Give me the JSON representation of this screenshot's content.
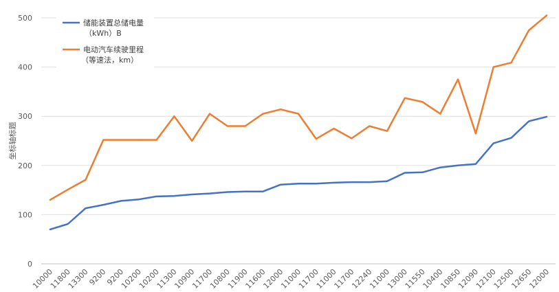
{
  "chart_data": {
    "type": "line",
    "ylabel": "坐标轴标题",
    "ylim": [
      0,
      500
    ],
    "yticks": [
      "0",
      "100",
      "200",
      "300",
      "400",
      "500"
    ],
    "grid": true,
    "legend_position": "top-left",
    "categories": [
      "10000",
      "11800",
      "13300",
      "9200",
      "9200",
      "10200",
      "10200",
      "11300",
      "10900",
      "11700",
      "10800",
      "11900",
      "11600",
      "12000",
      "11000",
      "11700",
      "11000",
      "11700",
      "12240",
      "11000",
      "13000",
      "11550",
      "10400",
      "10850",
      "12090",
      "12100",
      "12500",
      "12650",
      "12000"
    ],
    "series": [
      {
        "name": "储能装置总储电量",
        "name_line2": "（kWh）B",
        "color": "#4472C4",
        "values": [
          70,
          81,
          113,
          120,
          128,
          131,
          137,
          138,
          141,
          143,
          146,
          147,
          147,
          161,
          163,
          163,
          165,
          166,
          166,
          168,
          185,
          186,
          196,
          200,
          203,
          245,
          256,
          290,
          299
        ]
      },
      {
        "name": "电动汽车续驶里程",
        "name_line2": "（等速法，km）",
        "color": "#ED7D31",
        "values": [
          130,
          151,
          171,
          252,
          252,
          252,
          252,
          300,
          250,
          305,
          280,
          280,
          305,
          314,
          305,
          254,
          275,
          255,
          280,
          270,
          337,
          329,
          305,
          375,
          265,
          400,
          409,
          475,
          505
        ]
      }
    ]
  }
}
